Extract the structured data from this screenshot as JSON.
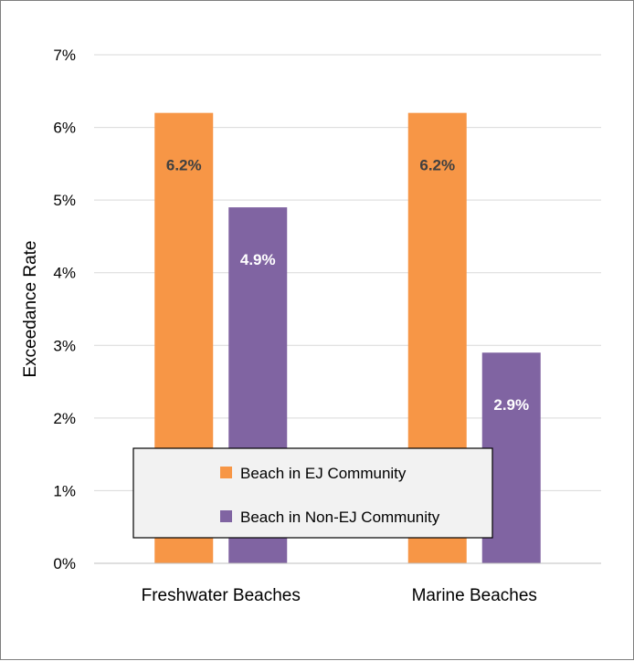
{
  "chart_data": {
    "type": "bar",
    "categories": [
      "Freshwater Beaches",
      "Marine Beaches"
    ],
    "series": [
      {
        "name": "Beach in EJ Community",
        "values": [
          6.2,
          6.2
        ],
        "labels": [
          "6.2%",
          "6.2%"
        ],
        "color": "#F79646"
      },
      {
        "name": "Beach in Non-EJ Community",
        "values": [
          4.9,
          2.9
        ],
        "labels": [
          "4.9%",
          "2.9%"
        ],
        "color": "#8064A2"
      }
    ],
    "title": "",
    "xlabel": "",
    "ylabel": "Exceedance Rate",
    "ylim": [
      0,
      7
    ],
    "yticks": [
      0,
      1,
      2,
      3,
      4,
      5,
      6,
      7
    ],
    "ytick_labels": [
      "0%",
      "1%",
      "2%",
      "3%",
      "4%",
      "5%",
      "6%",
      "7%"
    ],
    "grid": true,
    "legend_position": "bottom-center overlay"
  },
  "colors": {
    "grid": "#d9d9d9",
    "axis": "#bfbfbf",
    "label_ef": "#404040",
    "label_non_ef": "#ffffff",
    "legend_bg": "#f2f2f2",
    "legend_border": "#000000"
  }
}
